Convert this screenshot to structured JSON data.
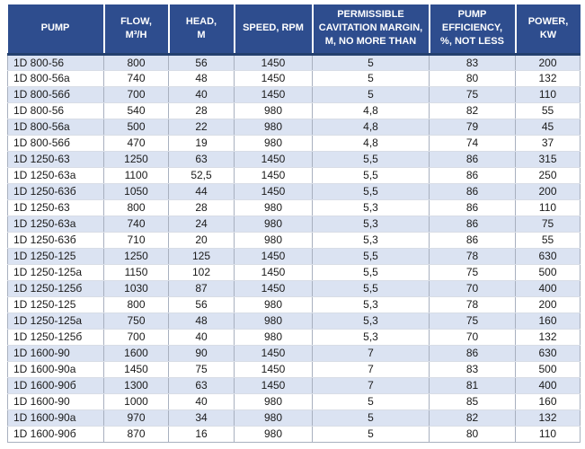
{
  "colors": {
    "header_bg": "#2E4D8E",
    "header_text": "#FFFFFF",
    "stripe": "#DBE3F2",
    "column_line": "#A8B0BF",
    "header_underline": "#24406E"
  },
  "table": {
    "columns": [
      {
        "label": "PUMP"
      },
      {
        "label": "FLOW,\nM³/H"
      },
      {
        "label": "HEAD,\nM"
      },
      {
        "label": "SPEED, RPM"
      },
      {
        "label": "PERMISSIBLE\nCAVITATION MARGIN,\nM, NO MORE THAN"
      },
      {
        "label": "PUMP\nEFFICIENCY,\n%, NOT LESS"
      },
      {
        "label": "POWER,\nKW"
      }
    ],
    "rows": [
      [
        "1D 800-56",
        "800",
        "56",
        "1450",
        "5",
        "83",
        "200"
      ],
      [
        "1D 800-56a",
        "740",
        "48",
        "1450",
        "5",
        "80",
        "132"
      ],
      [
        "1D 800-56б",
        "700",
        "40",
        "1450",
        "5",
        "75",
        "110"
      ],
      [
        "1D 800-56",
        "540",
        "28",
        "980",
        "4,8",
        "82",
        "55"
      ],
      [
        "1D 800-56a",
        "500",
        "22",
        "980",
        "4,8",
        "79",
        "45"
      ],
      [
        "1D 800-56б",
        "470",
        "19",
        "980",
        "4,8",
        "74",
        "37"
      ],
      [
        "1D 1250-63",
        "1250",
        "63",
        "1450",
        "5,5",
        "86",
        "315"
      ],
      [
        "1D 1250-63a",
        "1100",
        "52,5",
        "1450",
        "5,5",
        "86",
        "250"
      ],
      [
        "1D 1250-63б",
        "1050",
        "44",
        "1450",
        "5,5",
        "86",
        "200"
      ],
      [
        "1D 1250-63",
        "800",
        "28",
        "980",
        "5,3",
        "86",
        "110"
      ],
      [
        "1D 1250-63a",
        "740",
        "24",
        "980",
        "5,3",
        "86",
        "75"
      ],
      [
        "1D 1250-63б",
        "710",
        "20",
        "980",
        "5,3",
        "86",
        "55"
      ],
      [
        "1D 1250-125",
        "1250",
        "125",
        "1450",
        "5,5",
        "78",
        "630"
      ],
      [
        "1D 1250-125a",
        "1150",
        "102",
        "1450",
        "5,5",
        "75",
        "500"
      ],
      [
        "1D 1250-125б",
        "1030",
        "87",
        "1450",
        "5,5",
        "70",
        "400"
      ],
      [
        "1D 1250-125",
        "800",
        "56",
        "980",
        "5,3",
        "78",
        "200"
      ],
      [
        "1D 1250-125a",
        "750",
        "48",
        "980",
        "5,3",
        "75",
        "160"
      ],
      [
        "1D 1250-125б",
        "700",
        "40",
        "980",
        "5,3",
        "70",
        "132"
      ],
      [
        "1D 1600-90",
        "1600",
        "90",
        "1450",
        "7",
        "86",
        "630"
      ],
      [
        "1D 1600-90a",
        "1450",
        "75",
        "1450",
        "7",
        "83",
        "500"
      ],
      [
        "1D 1600-90б",
        "1300",
        "63",
        "1450",
        "7",
        "81",
        "400"
      ],
      [
        "1D 1600-90",
        "1000",
        "40",
        "980",
        "5",
        "85",
        "160"
      ],
      [
        "1D 1600-90a",
        "970",
        "34",
        "980",
        "5",
        "82",
        "132"
      ],
      [
        "1D 1600-90б",
        "870",
        "16",
        "980",
        "5",
        "80",
        "110"
      ]
    ]
  }
}
